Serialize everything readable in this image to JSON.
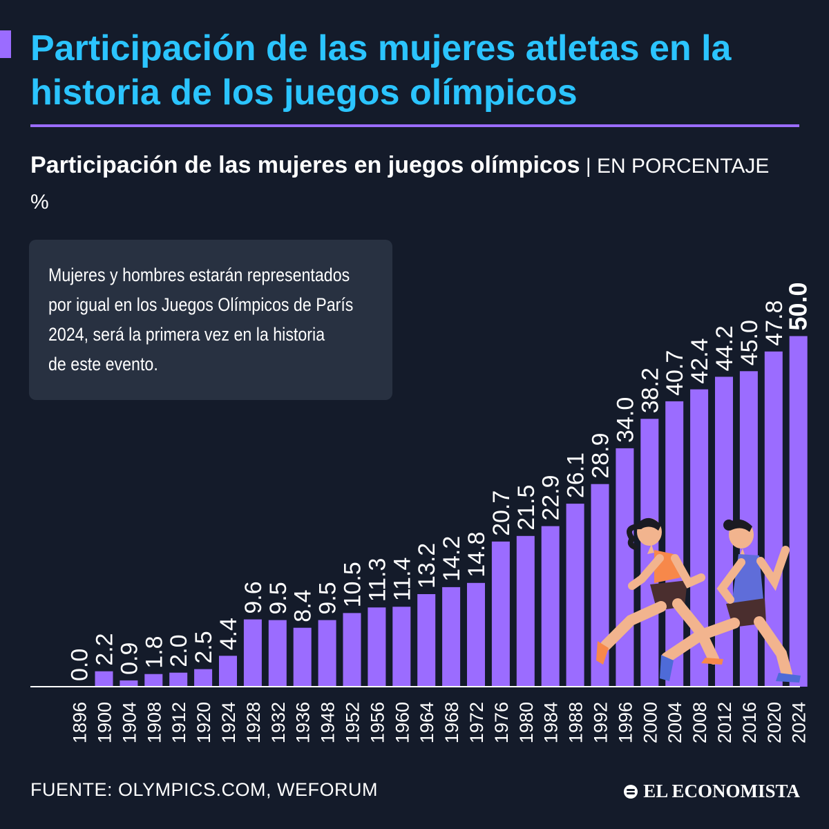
{
  "header": {
    "title": "Participación de las mujeres atletas en la historia de los juegos olímpicos",
    "subtitle_bold": "Participación de las mujeres en juegos olímpicos",
    "subtitle_unit": " | EN PORCENTAJE %"
  },
  "note": {
    "lines": [
      "Mujeres y hombres estarán representados",
      "por igual en los Juegos Olímpicos de París",
      "2024, será la primera vez en la historia",
      "de este evento."
    ]
  },
  "footer": {
    "source": "FUENTE: OLYMPICS.COM, WEFORUM",
    "brand": "EL ECONOMISTA"
  },
  "colors": {
    "bar": "#9b6cff",
    "title": "#2bc4ff",
    "background": "#141b2a",
    "text": "#ffffff"
  },
  "chart_data": {
    "type": "bar",
    "title": "Participación de las mujeres en juegos olímpicos",
    "ylabel": "Porcentaje %",
    "xlabel": "",
    "ylim": [
      0,
      50
    ],
    "categories": [
      "1896",
      "1900",
      "1904",
      "1908",
      "1912",
      "1920",
      "1924",
      "1928",
      "1932",
      "1936",
      "1948",
      "1952",
      "1956",
      "1960",
      "1964",
      "1968",
      "1972",
      "1976",
      "1980",
      "1984",
      "1988",
      "1992",
      "1996",
      "2000",
      "2004",
      "2008",
      "2012",
      "2016",
      "2020",
      "2024"
    ],
    "values": [
      0.0,
      2.2,
      0.9,
      1.8,
      2.0,
      2.5,
      4.4,
      9.6,
      9.5,
      8.4,
      9.5,
      10.5,
      11.3,
      11.4,
      13.2,
      14.2,
      14.8,
      20.7,
      21.5,
      22.9,
      26.1,
      28.9,
      34.0,
      38.2,
      40.7,
      42.4,
      44.2,
      45.0,
      47.8,
      50.0
    ],
    "labels": [
      "0.0",
      "2.2",
      "0.9",
      "1.8",
      "2.0",
      "2.5",
      "4.4",
      "9.6",
      "9.5",
      "8.4",
      "9.5",
      "10.5",
      "11.3",
      "11.4",
      "13.2",
      "14.2",
      "14.8",
      "20.7",
      "21.5",
      "22.9",
      "26.1",
      "28.9",
      "34.0",
      "38.2",
      "40.7",
      "42.4",
      "44.2",
      "45.0",
      "47.8",
      "50.0"
    ],
    "highlight_index": 29
  }
}
